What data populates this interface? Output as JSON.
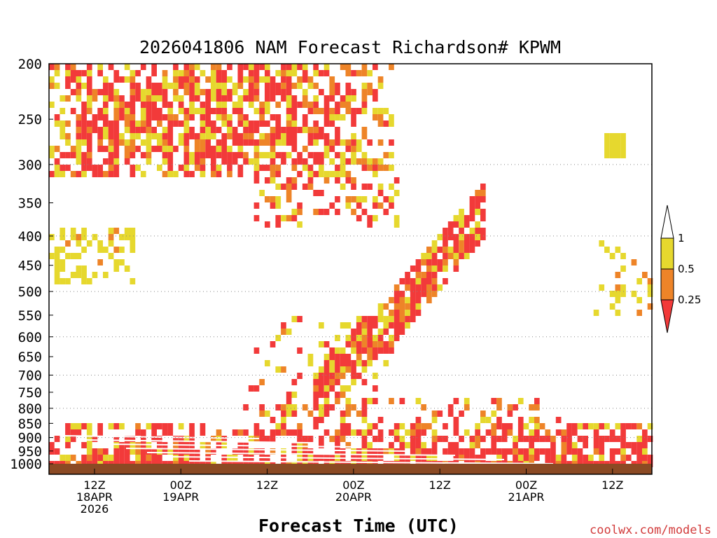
{
  "chart_data": {
    "type": "heatmap",
    "title": "2026041806 NAM Forecast Richardson# KPWM",
    "xlabel": "Forecast Time (UTC)",
    "ylabel": "",
    "credit": "coolwx.com/models",
    "y_axis": {
      "scale": "log-pressure",
      "range_hPa": [
        1050,
        200
      ],
      "ticks": [
        "200",
        "250",
        "300",
        "350",
        "400",
        "450",
        "500",
        "550",
        "600",
        "650",
        "700",
        "750",
        "800",
        "850",
        "900",
        "950",
        "1000"
      ]
    },
    "x_axis": {
      "range_hours_utc": [
        "2026-04-18T06Z",
        "2026-04-21T18Z"
      ],
      "ticks": [
        {
          "lines": [
            "12Z",
            "18APR",
            "2026"
          ]
        },
        {
          "lines": [
            "00Z",
            "19APR"
          ]
        },
        {
          "lines": [
            "12Z"
          ]
        },
        {
          "lines": [
            "00Z",
            "20APR"
          ]
        },
        {
          "lines": [
            "12Z"
          ]
        },
        {
          "lines": [
            "00Z",
            "21APR"
          ]
        },
        {
          "lines": [
            "12Z"
          ]
        }
      ]
    },
    "grid": "dotted horizontal at pressure ticks",
    "legend": {
      "position": "right",
      "labels": [
        "1",
        "0.5",
        "0.25"
      ],
      "bins": [
        {
          "range": "> 1",
          "color": "#ffffff"
        },
        {
          "range": "0.5 - 1",
          "color": "#e6d82e"
        },
        {
          "range": "0.25 - 0.5",
          "color": "#ee8428"
        },
        {
          "range": "< 0.25",
          "color": "#f23a3a"
        }
      ]
    },
    "colors": {
      "yellow": "#e6d82e",
      "orange": "#ee8428",
      "red": "#f23a3a",
      "ground": "#8b4a24"
    },
    "regions": [
      {
        "name": "upper-level red/orange/yellow band 200-320 hPa, 18APR 06Z - 20APR 06Z"
      },
      {
        "name": "sloping low-Ri plume rising from 800 hPa at 20APR 00Z to 400 hPa at 20APR 12Z"
      },
      {
        "name": "boundary-layer red band 850-1000 hPa throughout forecast"
      }
    ]
  }
}
